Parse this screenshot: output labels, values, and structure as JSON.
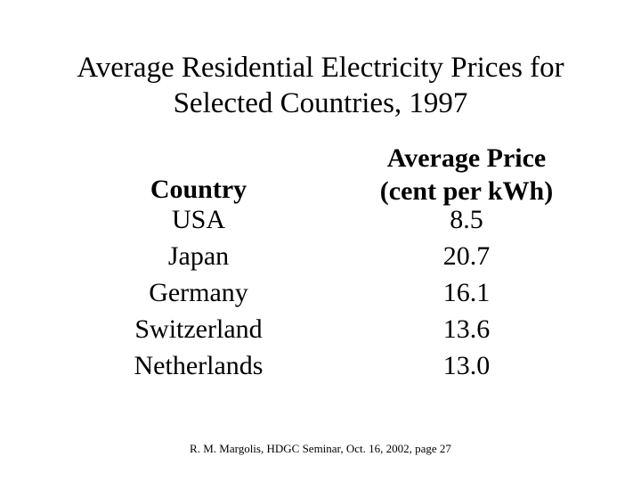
{
  "slide": {
    "title_line1": "Average Residential Electricity Prices for",
    "title_line2": "Selected Countries, 1997",
    "table": {
      "country_header": "Country",
      "price_header_line1": "Average Price",
      "price_header_line2": "(cent per kWh)",
      "rows": [
        {
          "country": "USA",
          "price": "8.5"
        },
        {
          "country": "Japan",
          "price": "20.7"
        },
        {
          "country": "Germany",
          "price": "16.1"
        },
        {
          "country": "Switzerland",
          "price": "13.6"
        },
        {
          "country": "Netherlands",
          "price": "13.0"
        }
      ]
    },
    "footer": "R. M. Margolis, HDGC Seminar, Oct. 16, 2002, page 27"
  }
}
